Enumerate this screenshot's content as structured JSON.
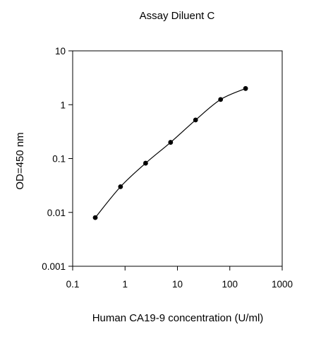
{
  "chart_data": {
    "type": "scatter",
    "title": "Assay Diluent C",
    "xlabel": "Human CA19-9 concentration (U/ml)",
    "ylabel": "OD=450 nm",
    "x_scale": "log",
    "y_scale": "log",
    "xlim": [
      0.1,
      1000
    ],
    "ylim": [
      0.001,
      10
    ],
    "x_ticks": [
      "0.1",
      "1",
      "10",
      "100",
      "1000"
    ],
    "y_ticks": [
      "10",
      "1",
      "0.1",
      "0.01",
      "0.001"
    ],
    "grid": false,
    "series": [
      {
        "x": [
          0.27,
          0.82,
          2.47,
          7.41,
          22.2,
          66.7,
          200
        ],
        "y": [
          0.008,
          0.03,
          0.082,
          0.2,
          0.52,
          1.25,
          2.0
        ]
      }
    ],
    "colors": {
      "line": "#000000",
      "marker": "#000000",
      "axis": "#000000"
    }
  }
}
